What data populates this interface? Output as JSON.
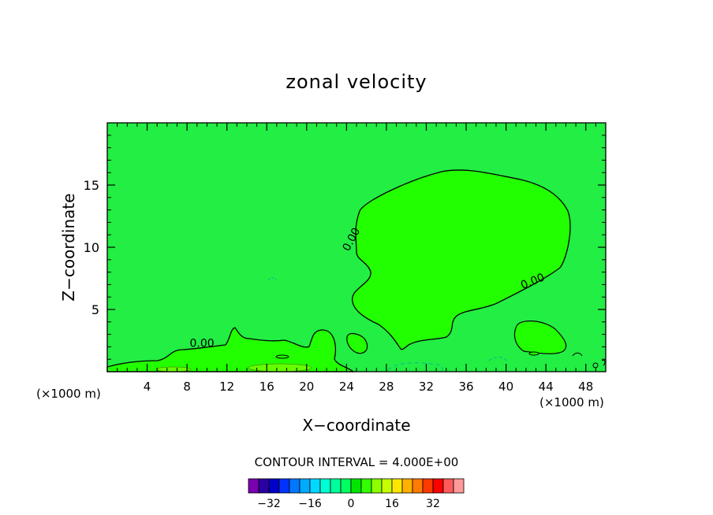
{
  "chart_data": {
    "type": "contour",
    "title": "zonal velocity",
    "xlabel": "X−coordinate",
    "ylabel": "Z−coordinate",
    "x_unit": "(×1000 m)",
    "x_unit_right": "(×1000 m)",
    "xlim": [
      0,
      50
    ],
    "ylim": [
      0,
      20
    ],
    "xticks": [
      4,
      8,
      12,
      16,
      20,
      24,
      28,
      32,
      36,
      40,
      44,
      48
    ],
    "yticks": [
      5,
      10,
      15
    ],
    "contour_interval_text": "CONTOUR INTERVAL = 4.000E+00",
    "contour_labels": [
      {
        "text": "0.00",
        "x": 9.5,
        "z": 2.0
      },
      {
        "text": "0.00",
        "x": 24.8,
        "z": 10.5
      },
      {
        "text": "0.00",
        "x": 42.8,
        "z": 7.0
      }
    ],
    "colorbar": {
      "levels": [
        -36,
        -32,
        -28,
        -24,
        -20,
        -16,
        -12,
        -8,
        -4,
        0,
        4,
        8,
        12,
        16,
        20,
        24,
        28,
        32,
        36
      ],
      "colors": [
        "#7a00b0",
        "#2a00a0",
        "#0000c8",
        "#0033ff",
        "#0077ff",
        "#00aaff",
        "#00d8ff",
        "#00ffd2",
        "#00ff9a",
        "#00ff60",
        "#00e600",
        "#33ff00",
        "#8cff00",
        "#c8ff00",
        "#ffe600",
        "#ffb000",
        "#ff7a00",
        "#ff3a00",
        "#ff0000",
        "#ff5a5a",
        "#ff9a9a"
      ],
      "tick_values": [
        -32,
        -16,
        0,
        16,
        32
      ],
      "tick_labels": [
        "−32",
        "−16",
        "0",
        "16",
        "32"
      ]
    },
    "background_color": "#22ee44",
    "positive_region_color": "#22ff00"
  }
}
